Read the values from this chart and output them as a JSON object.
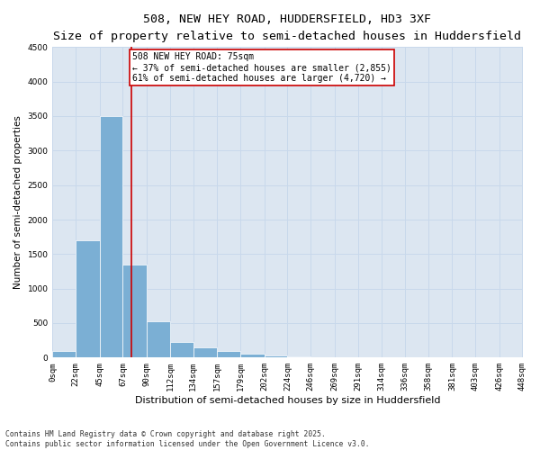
{
  "title_line1": "508, NEW HEY ROAD, HUDDERSFIELD, HD3 3XF",
  "title_line2": "Size of property relative to semi-detached houses in Huddersfield",
  "xlabel": "Distribution of semi-detached houses by size in Huddersfield",
  "ylabel": "Number of semi-detached properties",
  "bins": [
    0,
    22,
    45,
    67,
    90,
    112,
    134,
    157,
    179,
    202,
    224,
    246,
    269,
    291,
    314,
    336,
    358,
    381,
    403,
    426,
    448
  ],
  "bin_labels": [
    "0sqm",
    "22sqm",
    "45sqm",
    "67sqm",
    "90sqm",
    "112sqm",
    "134sqm",
    "157sqm",
    "179sqm",
    "202sqm",
    "224sqm",
    "246sqm",
    "269sqm",
    "291sqm",
    "314sqm",
    "336sqm",
    "358sqm",
    "381sqm",
    "403sqm",
    "426sqm",
    "448sqm"
  ],
  "counts": [
    100,
    1700,
    3500,
    1350,
    520,
    230,
    150,
    100,
    60,
    30,
    20,
    10,
    5,
    3,
    2,
    1,
    1,
    0,
    0,
    0
  ],
  "bar_color": "#7bafd4",
  "grid_color": "#c8d8eb",
  "bg_color": "#dce6f1",
  "property_sqm": 75,
  "vline_color": "#cc0000",
  "annotation_text": "508 NEW HEY ROAD: 75sqm\n← 37% of semi-detached houses are smaller (2,855)\n61% of semi-detached houses are larger (4,720) →",
  "annotation_box_color": "#ffffff",
  "annotation_box_edge": "#cc0000",
  "ylim": [
    0,
    4500
  ],
  "yticks": [
    0,
    500,
    1000,
    1500,
    2000,
    2500,
    3000,
    3500,
    4000,
    4500
  ],
  "footnote": "Contains HM Land Registry data © Crown copyright and database right 2025.\nContains public sector information licensed under the Open Government Licence v3.0.",
  "title_fontsize": 9.5,
  "subtitle_fontsize": 8.5,
  "axis_label_fontsize": 8,
  "tick_fontsize": 6.5,
  "annotation_fontsize": 7,
  "ylabel_fontsize": 7.5
}
